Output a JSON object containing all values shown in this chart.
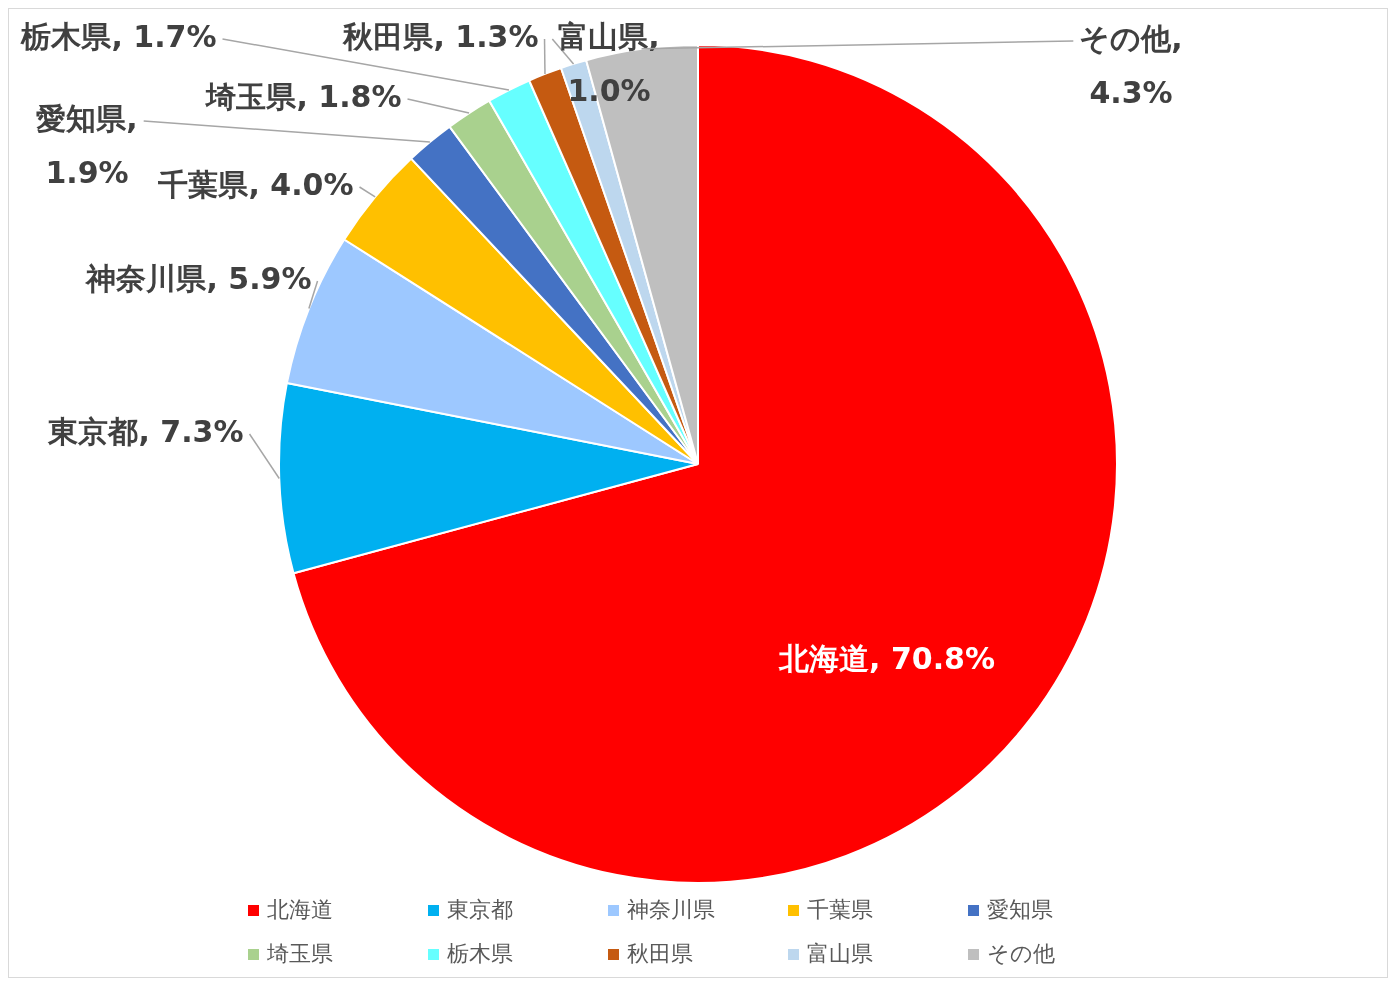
{
  "chart_data": {
    "type": "pie",
    "categories": [
      "北海道",
      "東京都",
      "神奈川県",
      "千葉県",
      "愛知県",
      "埼玉県",
      "栃木県",
      "秋田県",
      "富山県",
      "その他"
    ],
    "values": [
      70.8,
      7.3,
      5.9,
      4.0,
      1.9,
      1.8,
      1.7,
      1.3,
      1.0,
      4.3
    ],
    "colors": [
      "#ff0000",
      "#00b0f0",
      "#9dc8ff",
      "#ffc000",
      "#4472c4",
      "#a9d18e",
      "#66ffff",
      "#c55a11",
      "#bdd7ee",
      "#bfbfbf"
    ],
    "value_labels": [
      "北海道, 70.8%",
      "東京都, 7.3%",
      "神奈川県, 5.9%",
      "千葉県, 4.0%",
      "愛知県, 1.9%",
      "埼玉県, 1.8%",
      "栃木県, 1.7%",
      "秋田県, 1.3%",
      "富山県, 1.0%",
      "その他, 4.3%"
    ],
    "legend": "bottom"
  }
}
